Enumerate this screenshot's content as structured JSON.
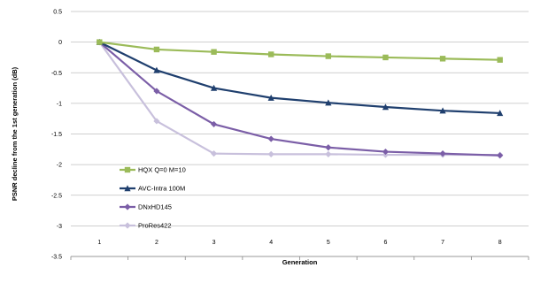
{
  "chart_data": {
    "type": "line",
    "title": "",
    "xlabel": "Generation",
    "ylabel": "PSNR decline from the 1st generation (dB)",
    "x": [
      1,
      2,
      3,
      4,
      5,
      6,
      7,
      8
    ],
    "x_tick_labels": [
      "1",
      "2",
      "3",
      "4",
      "5",
      "6",
      "7",
      "8"
    ],
    "ylim": [
      -3.5,
      0.5
    ],
    "y_ticks": [
      0.5,
      0,
      -0.5,
      -1,
      -1.5,
      -2,
      -2.5,
      -3,
      -3.5
    ],
    "y_tick_labels": [
      "0.5",
      "0",
      "-0.5",
      "-1",
      "-1.5",
      "-2",
      "-2.5",
      "-3",
      "-3.5"
    ],
    "grid": true,
    "legend_position": "lower-left inside plot",
    "series": [
      {
        "name": "HQX Q=0 M=10",
        "color": "#9bbb59",
        "marker": "square",
        "values": [
          0,
          -0.12,
          -0.16,
          -0.2,
          -0.23,
          -0.25,
          -0.27,
          -0.29
        ]
      },
      {
        "name": "AVC-Intra 100M",
        "color": "#1f3f6e",
        "marker": "triangle",
        "values": [
          0,
          -0.46,
          -0.75,
          -0.91,
          -0.99,
          -1.06,
          -1.12,
          -1.16
        ]
      },
      {
        "name": "DNxHD145",
        "color": "#7b5ea7",
        "marker": "diamond",
        "values": [
          0,
          -0.8,
          -1.34,
          -1.58,
          -1.72,
          -1.79,
          -1.82,
          -1.85
        ]
      },
      {
        "name": "ProRes422",
        "color": "#c8c0dc",
        "marker": "diamond",
        "values": [
          0,
          -1.29,
          -1.82,
          -1.83,
          -1.83,
          -1.84,
          -1.84,
          -1.84
        ]
      }
    ]
  }
}
